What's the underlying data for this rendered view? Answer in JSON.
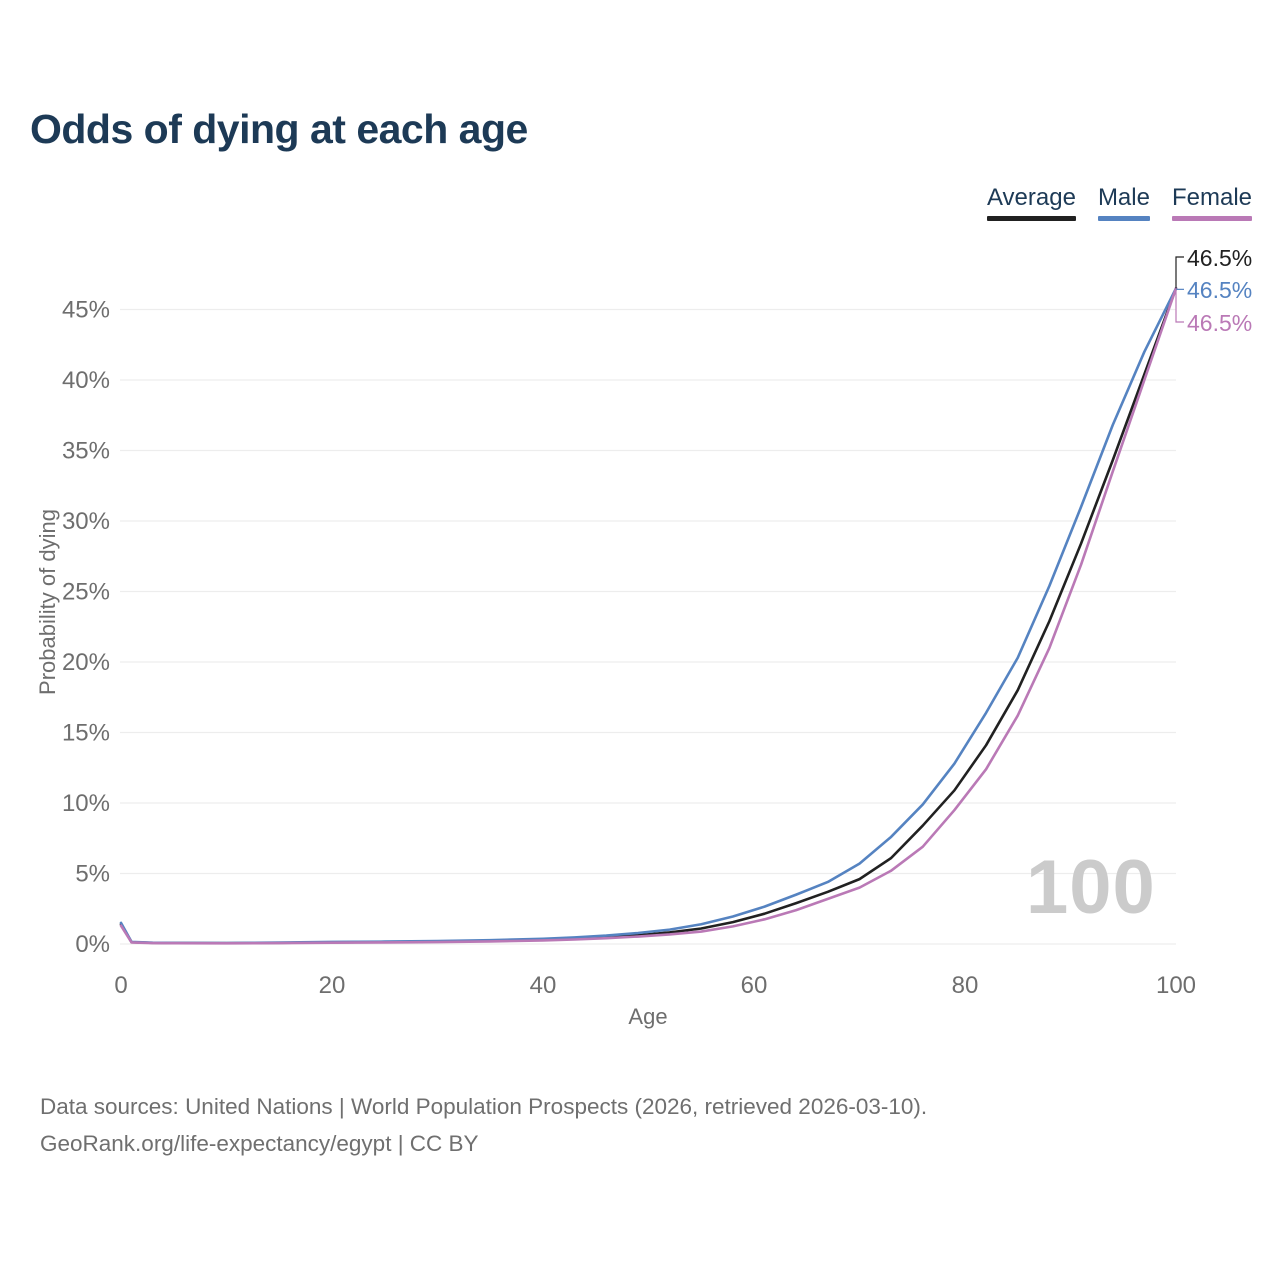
{
  "header": {
    "title": "Odds of dying at each age"
  },
  "legend": {
    "items": [
      {
        "label": "Average"
      },
      {
        "label": "Male"
      },
      {
        "label": "Female"
      }
    ]
  },
  "end_labels": [
    {
      "text": "46.5%"
    },
    {
      "text": "46.5%"
    },
    {
      "text": "46.5%"
    }
  ],
  "watermark": {
    "text": "100"
  },
  "axes": {
    "y_title": "Probability of dying",
    "x_title": "Age"
  },
  "footer": {
    "line1": "Data sources: United Nations | World Population Prospects (2026, retrieved 2026-03-10).",
    "line2": "GeoRank.org/life-expectancy/egypt | CC BY"
  },
  "chart_data": {
    "type": "line",
    "title": "Odds of dying at each age",
    "xlabel": "Age",
    "ylabel": "Probability of dying",
    "xlim": [
      0,
      100
    ],
    "ylim": [
      0,
      47.5
    ],
    "grid": true,
    "legend_position": "top-right",
    "x_ticks": [
      0,
      20,
      40,
      60,
      80,
      100
    ],
    "x_tick_labels": [
      "0",
      "20",
      "40",
      "60",
      "80",
      "100"
    ],
    "y_ticks": [
      0,
      5,
      10,
      15,
      20,
      25,
      30,
      35,
      40,
      45
    ],
    "y_tick_labels": [
      "0%",
      "5%",
      "10%",
      "15%",
      "20%",
      "25%",
      "30%",
      "35%",
      "40%",
      "45%"
    ],
    "x": [
      0,
      1,
      3,
      5,
      10,
      15,
      20,
      25,
      30,
      35,
      40,
      43,
      46,
      49,
      52,
      55,
      58,
      61,
      64,
      67,
      70,
      73,
      76,
      79,
      82,
      85,
      88,
      91,
      94,
      97,
      100
    ],
    "series": [
      {
        "name": "Average",
        "color": "#212121",
        "end_label": "46.5%",
        "values": [
          1.4,
          0.13,
          0.08,
          0.07,
          0.06,
          0.08,
          0.12,
          0.14,
          0.17,
          0.22,
          0.3,
          0.38,
          0.48,
          0.62,
          0.82,
          1.1,
          1.55,
          2.15,
          2.9,
          3.7,
          4.6,
          6.1,
          8.4,
          10.9,
          14.1,
          18.0,
          22.9,
          28.4,
          34.3,
          40.4,
          46.5
        ]
      },
      {
        "name": "Male",
        "color": "#5583c1",
        "end_label": "46.5%",
        "values": [
          1.5,
          0.15,
          0.09,
          0.08,
          0.07,
          0.1,
          0.15,
          0.17,
          0.21,
          0.27,
          0.37,
          0.47,
          0.6,
          0.78,
          1.02,
          1.4,
          1.95,
          2.65,
          3.5,
          4.4,
          5.7,
          7.6,
          9.9,
          12.8,
          16.4,
          20.3,
          25.4,
          31.0,
          36.8,
          42.0,
          46.5
        ]
      },
      {
        "name": "Female",
        "color": "#ba79b6",
        "end_label": "46.5%",
        "values": [
          1.3,
          0.11,
          0.07,
          0.06,
          0.05,
          0.07,
          0.09,
          0.11,
          0.14,
          0.18,
          0.25,
          0.32,
          0.41,
          0.53,
          0.68,
          0.88,
          1.25,
          1.75,
          2.4,
          3.2,
          4.0,
          5.2,
          6.9,
          9.5,
          12.4,
          16.2,
          21.0,
          26.9,
          33.5,
          40.0,
          46.5
        ]
      }
    ],
    "annotations": [
      "46.5%",
      "46.5%",
      "46.5%",
      "100"
    ]
  }
}
